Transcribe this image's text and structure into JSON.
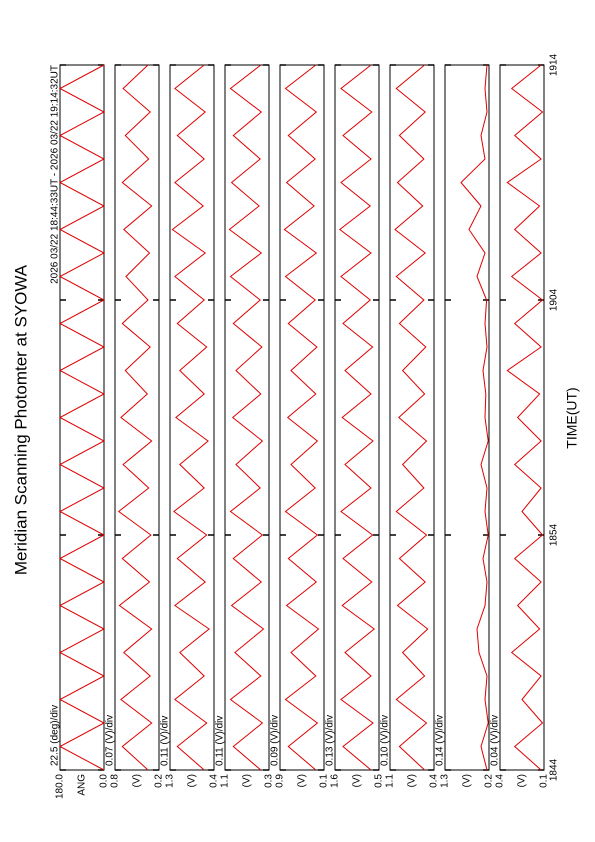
{
  "chart_data": {
    "type": "line",
    "title": "Meridian Scanning Photomter at SYOWA",
    "subtitle": "2026 03/22 18:44:33UT - 2026 03/22 19:14:32UT",
    "xlabel": "TIME(UT)",
    "x": [
      "18:44",
      "18:45",
      "18:46",
      "18:47",
      "18:48",
      "18:49",
      "18:50",
      "18:51",
      "18:52",
      "18:53",
      "18:54",
      "18:55",
      "18:56",
      "18:57",
      "18:58",
      "18:59",
      "19:00",
      "19:01",
      "19:02",
      "19:03",
      "19:04",
      "19:05",
      "19:06",
      "19:07",
      "19:08",
      "19:09",
      "19:10",
      "19:11",
      "19:12",
      "19:13",
      "19:14"
    ],
    "xlim": [
      "18:44",
      "19:14"
    ],
    "xticks": [
      {
        "value": "18:44",
        "label": "1844"
      },
      {
        "value": "18:54",
        "label": "1854"
      },
      {
        "value": "19:04",
        "label": "1904"
      },
      {
        "value": "19:14",
        "label": "1914"
      }
    ],
    "panels": [
      {
        "label": "22.5 (deg)/div",
        "unit": "ANG",
        "color": "#e00000",
        "ylim": [
          0,
          180
        ],
        "yticks": [
          {
            "value": 180,
            "label": "180.0"
          },
          {
            "value": 0,
            "label": "0.0"
          }
        ],
        "values": [
          0,
          180,
          0,
          180,
          0,
          180,
          0,
          180,
          0,
          180,
          0,
          180,
          0,
          180,
          0,
          180,
          0,
          180,
          0,
          180,
          0,
          180,
          0,
          180,
          0,
          180,
          0,
          180,
          0,
          180,
          0
        ]
      },
      {
        "label": "0.07 (V)/div",
        "unit": "(V)",
        "color": "#e00000",
        "ylim": [
          0.2,
          0.8
        ],
        "yticks": [
          0.8,
          0.2
        ],
        "values": [
          0.35,
          0.7,
          0.3,
          0.72,
          0.32,
          0.68,
          0.3,
          0.74,
          0.33,
          0.7,
          0.31,
          0.75,
          0.34,
          0.69,
          0.3,
          0.72,
          0.36,
          0.66,
          0.32,
          0.7,
          0.35,
          0.65,
          0.33,
          0.68,
          0.3,
          0.7,
          0.34,
          0.66,
          0.32,
          0.69,
          0.35
        ]
      },
      {
        "label": "0.11 (V)/div",
        "unit": "(V)",
        "color": "#e00000",
        "ylim": [
          0.4,
          1.3
        ],
        "yticks": [
          1.3,
          0.4
        ],
        "values": [
          0.6,
          1.15,
          0.55,
          1.2,
          0.6,
          1.1,
          0.5,
          1.2,
          0.58,
          1.15,
          0.55,
          1.22,
          0.6,
          1.1,
          0.52,
          1.18,
          0.6,
          1.1,
          0.55,
          1.15,
          0.6,
          1.2,
          0.58,
          1.25,
          0.62,
          1.2,
          0.6,
          1.15,
          0.58,
          1.2,
          0.6
        ]
      },
      {
        "label": "0.11 (V)/div",
        "unit": "(V)",
        "color": "#e00000",
        "ylim": [
          0.3,
          1.1
        ],
        "yticks": [
          1.1,
          0.3
        ],
        "values": [
          0.45,
          0.95,
          0.42,
          1.0,
          0.45,
          0.92,
          0.4,
          0.98,
          0.44,
          0.95,
          0.42,
          1.0,
          0.46,
          0.9,
          0.42,
          0.96,
          0.45,
          0.9,
          0.43,
          0.95,
          0.46,
          1.0,
          0.44,
          1.02,
          0.48,
          0.98,
          0.46,
          0.95,
          0.44,
          1.0,
          0.45
        ]
      },
      {
        "label": "0.09 (V)/div",
        "unit": "(V)",
        "color": "#e00000",
        "ylim": [
          0.1,
          0.9
        ],
        "yticks": [
          0.9,
          0.1
        ],
        "values": [
          0.25,
          0.75,
          0.22,
          0.8,
          0.25,
          0.7,
          0.2,
          0.78,
          0.24,
          0.75,
          0.22,
          0.8,
          0.26,
          0.7,
          0.22,
          0.76,
          0.25,
          0.7,
          0.23,
          0.75,
          0.26,
          0.8,
          0.24,
          0.82,
          0.28,
          0.78,
          0.26,
          0.75,
          0.24,
          0.8,
          0.25
        ]
      },
      {
        "label": "0.13 (V)/div",
        "unit": "(V)",
        "color": "#e00000",
        "ylim": [
          0.5,
          1.6
        ],
        "yticks": [
          1.6,
          0.5
        ],
        "values": [
          0.7,
          1.4,
          0.65,
          1.45,
          0.7,
          1.35,
          0.62,
          1.42,
          0.68,
          1.4,
          0.66,
          1.45,
          0.7,
          1.35,
          0.65,
          1.42,
          0.7,
          1.35,
          0.66,
          1.4,
          0.72,
          1.45,
          0.7,
          1.48,
          0.72,
          1.45,
          0.7,
          1.4,
          0.68,
          1.45,
          0.7
        ]
      },
      {
        "label": "0.10 (V)/div",
        "unit": "(V)",
        "color": "#e00000",
        "ylim": [
          0.4,
          1.1
        ],
        "yticks": [
          1.1,
          0.4
        ],
        "values": [
          0.55,
          0.95,
          0.52,
          1.0,
          0.55,
          0.9,
          0.5,
          0.98,
          0.54,
          0.95,
          0.52,
          1.0,
          0.56,
          0.9,
          0.52,
          0.96,
          0.55,
          0.9,
          0.53,
          0.95,
          0.56,
          1.0,
          0.54,
          1.02,
          0.58,
          0.98,
          0.56,
          0.95,
          0.54,
          1.0,
          0.55
        ]
      },
      {
        "label": "0.14 (V)/div",
        "unit": "(V)",
        "color": "#e00000",
        "ylim": [
          0.2,
          1.3
        ],
        "yticks": [
          1.3,
          0.2
        ],
        "values": [
          0.25,
          0.4,
          0.22,
          0.3,
          0.25,
          0.45,
          0.5,
          0.3,
          0.25,
          0.35,
          0.22,
          0.3,
          0.25,
          0.4,
          0.22,
          0.3,
          0.28,
          0.35,
          0.25,
          0.3,
          0.26,
          0.5,
          0.3,
          0.7,
          0.4,
          0.9,
          0.3,
          0.4,
          0.25,
          0.3,
          0.25
        ]
      },
      {
        "label": "0.04 (V)/div",
        "unit": "(V)",
        "color": "#e00000",
        "ylim": [
          0.1,
          0.4
        ],
        "yticks": [
          0.4,
          0.1
        ],
        "values": [
          0.12,
          0.3,
          0.11,
          0.25,
          0.12,
          0.32,
          0.13,
          0.28,
          0.12,
          0.3,
          0.11,
          0.25,
          0.12,
          0.3,
          0.12,
          0.28,
          0.13,
          0.35,
          0.12,
          0.3,
          0.11,
          0.32,
          0.12,
          0.3,
          0.13,
          0.35,
          0.12,
          0.3,
          0.11,
          0.32,
          0.12
        ]
      }
    ]
  }
}
